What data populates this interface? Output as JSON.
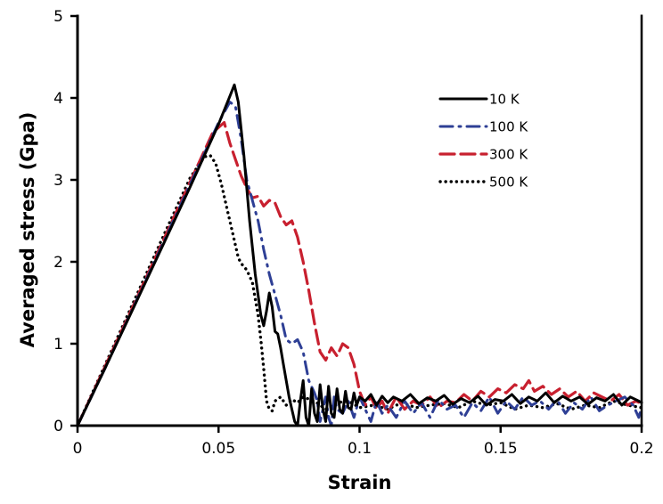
{
  "chart_data": {
    "type": "line",
    "title": "",
    "xlabel": "Strain",
    "ylabel": "Averaged stress (Gpa)",
    "xlim": [
      0,
      0.2
    ],
    "ylim": [
      0,
      5
    ],
    "xticks": [
      0,
      0.05,
      0.1,
      0.15,
      0.2
    ],
    "xtick_labels": [
      "0",
      "0.05",
      "0.1",
      "0.15",
      "0.2"
    ],
    "yticks": [
      0,
      1,
      2,
      3,
      4,
      5
    ],
    "ytick_labels": [
      "0",
      "1",
      "2",
      "3",
      "4",
      "5"
    ],
    "grid": false,
    "legend_position": "top-right",
    "series": [
      {
        "name": "10 K",
        "color": "#000000",
        "style": "solid",
        "x": [
          0,
          0.01,
          0.02,
          0.03,
          0.04,
          0.05,
          0.054,
          0.0556,
          0.057,
          0.059,
          0.061,
          0.063,
          0.065,
          0.066,
          0.067,
          0.068,
          0.069,
          0.07,
          0.071,
          0.072,
          0.073,
          0.074,
          0.075,
          0.076,
          0.077,
          0.078,
          0.079,
          0.08,
          0.081,
          0.082,
          0.083,
          0.084,
          0.085,
          0.086,
          0.087,
          0.088,
          0.089,
          0.09,
          0.091,
          0.092,
          0.093,
          0.094,
          0.095,
          0.096,
          0.097,
          0.098,
          0.099,
          0.1,
          0.102,
          0.104,
          0.106,
          0.108,
          0.11,
          0.112,
          0.115,
          0.118,
          0.121,
          0.124,
          0.127,
          0.13,
          0.133,
          0.136,
          0.139,
          0.142,
          0.145,
          0.148,
          0.151,
          0.154,
          0.157,
          0.16,
          0.163,
          0.166,
          0.169,
          0.172,
          0.175,
          0.178,
          0.181,
          0.184,
          0.187,
          0.19,
          0.193,
          0.196,
          0.199,
          0.2
        ],
        "y": [
          0,
          0.72,
          1.45,
          2.18,
          2.92,
          3.68,
          4.02,
          4.16,
          3.95,
          3.3,
          2.5,
          1.85,
          1.35,
          1.22,
          1.4,
          1.62,
          1.45,
          1.15,
          1.12,
          0.95,
          0.75,
          0.55,
          0.35,
          0.2,
          0.05,
          0.0,
          0.3,
          0.55,
          0.1,
          0.0,
          0.45,
          0.15,
          0.05,
          0.5,
          0.2,
          0.05,
          0.48,
          0.15,
          0.1,
          0.45,
          0.2,
          0.15,
          0.42,
          0.22,
          0.2,
          0.4,
          0.25,
          0.35,
          0.3,
          0.38,
          0.25,
          0.36,
          0.28,
          0.35,
          0.3,
          0.38,
          0.27,
          0.34,
          0.3,
          0.37,
          0.26,
          0.33,
          0.28,
          0.36,
          0.25,
          0.32,
          0.3,
          0.38,
          0.27,
          0.35,
          0.3,
          0.4,
          0.28,
          0.36,
          0.3,
          0.35,
          0.26,
          0.34,
          0.3,
          0.38,
          0.25,
          0.35,
          0.3,
          0.28
        ]
      },
      {
        "name": "100 K",
        "color": "#2e3f95",
        "style": "dashdot",
        "x": [
          0,
          0.01,
          0.02,
          0.03,
          0.04,
          0.05,
          0.054,
          0.056,
          0.058,
          0.06,
          0.062,
          0.064,
          0.066,
          0.068,
          0.07,
          0.072,
          0.074,
          0.076,
          0.078,
          0.08,
          0.082,
          0.084,
          0.085,
          0.086,
          0.087,
          0.088,
          0.089,
          0.09,
          0.091,
          0.092,
          0.094,
          0.096,
          0.098,
          0.1,
          0.102,
          0.104,
          0.106,
          0.108,
          0.11,
          0.113,
          0.116,
          0.119,
          0.122,
          0.125,
          0.128,
          0.131,
          0.134,
          0.137,
          0.14,
          0.143,
          0.146,
          0.149,
          0.152,
          0.155,
          0.158,
          0.161,
          0.164,
          0.167,
          0.17,
          0.173,
          0.176,
          0.179,
          0.182,
          0.185,
          0.188,
          0.191,
          0.194,
          0.197,
          0.199,
          0.2
        ],
        "y": [
          0,
          0.72,
          1.46,
          2.2,
          2.95,
          3.7,
          3.95,
          3.9,
          3.5,
          3.0,
          2.75,
          2.5,
          2.15,
          1.85,
          1.6,
          1.35,
          1.05,
          1.0,
          1.05,
          0.9,
          0.55,
          0.4,
          0.3,
          0.05,
          0.2,
          0.35,
          0.1,
          0.0,
          0.35,
          0.2,
          0.15,
          0.3,
          0.1,
          0.35,
          0.2,
          0.05,
          0.3,
          0.15,
          0.25,
          0.1,
          0.3,
          0.15,
          0.28,
          0.1,
          0.32,
          0.2,
          0.25,
          0.1,
          0.28,
          0.18,
          0.35,
          0.15,
          0.3,
          0.2,
          0.35,
          0.25,
          0.3,
          0.2,
          0.32,
          0.15,
          0.28,
          0.2,
          0.35,
          0.18,
          0.25,
          0.3,
          0.35,
          0.25,
          0.1,
          0.22
        ]
      },
      {
        "name": "300 K",
        "color": "#c8202f",
        "style": "dashed",
        "x": [
          0,
          0.01,
          0.02,
          0.03,
          0.04,
          0.048,
          0.052,
          0.054,
          0.056,
          0.058,
          0.06,
          0.062,
          0.064,
          0.066,
          0.068,
          0.07,
          0.072,
          0.074,
          0.076,
          0.078,
          0.08,
          0.082,
          0.084,
          0.086,
          0.088,
          0.09,
          0.092,
          0.094,
          0.096,
          0.098,
          0.1,
          0.102,
          0.104,
          0.106,
          0.108,
          0.11,
          0.113,
          0.116,
          0.119,
          0.122,
          0.125,
          0.128,
          0.131,
          0.134,
          0.137,
          0.14,
          0.143,
          0.146,
          0.149,
          0.152,
          0.155,
          0.158,
          0.16,
          0.162,
          0.165,
          0.168,
          0.171,
          0.174,
          0.177,
          0.18,
          0.183,
          0.186,
          0.189,
          0.192,
          0.195,
          0.198,
          0.2
        ],
        "y": [
          0,
          0.74,
          1.48,
          2.23,
          2.98,
          3.58,
          3.7,
          3.45,
          3.25,
          3.05,
          2.9,
          2.78,
          2.8,
          2.68,
          2.75,
          2.72,
          2.55,
          2.45,
          2.5,
          2.3,
          2.0,
          1.65,
          1.25,
          0.9,
          0.8,
          0.95,
          0.85,
          1.0,
          0.95,
          0.75,
          0.42,
          0.25,
          0.35,
          0.2,
          0.3,
          0.15,
          0.35,
          0.2,
          0.3,
          0.25,
          0.35,
          0.22,
          0.3,
          0.28,
          0.38,
          0.3,
          0.42,
          0.35,
          0.45,
          0.4,
          0.5,
          0.45,
          0.55,
          0.42,
          0.48,
          0.38,
          0.45,
          0.35,
          0.42,
          0.3,
          0.4,
          0.35,
          0.3,
          0.38,
          0.25,
          0.3,
          0.27
        ]
      },
      {
        "name": "500 K",
        "color": "#000000",
        "style": "dotted",
        "x": [
          0,
          0.01,
          0.02,
          0.03,
          0.04,
          0.045,
          0.047,
          0.049,
          0.051,
          0.053,
          0.055,
          0.057,
          0.058,
          0.06,
          0.062,
          0.063,
          0.064,
          0.065,
          0.066,
          0.067,
          0.068,
          0.069,
          0.07,
          0.072,
          0.074,
          0.076,
          0.078,
          0.08,
          0.084,
          0.088,
          0.092,
          0.096,
          0.1,
          0.105,
          0.11,
          0.115,
          0.12,
          0.125,
          0.13,
          0.135,
          0.14,
          0.145,
          0.15,
          0.155,
          0.16,
          0.165,
          0.17,
          0.175,
          0.18,
          0.185,
          0.19,
          0.195,
          0.2
        ],
        "y": [
          0,
          0.76,
          1.52,
          2.28,
          3.03,
          3.28,
          3.3,
          3.2,
          2.95,
          2.65,
          2.35,
          2.05,
          1.98,
          1.9,
          1.75,
          1.55,
          1.35,
          1.05,
          0.7,
          0.3,
          0.2,
          0.18,
          0.3,
          0.35,
          0.25,
          0.32,
          0.28,
          0.35,
          0.3,
          0.2,
          0.28,
          0.3,
          0.22,
          0.25,
          0.2,
          0.28,
          0.22,
          0.25,
          0.27,
          0.22,
          0.3,
          0.25,
          0.28,
          0.2,
          0.25,
          0.22,
          0.27,
          0.2,
          0.25,
          0.22,
          0.3,
          0.25,
          0.22
        ]
      }
    ]
  }
}
